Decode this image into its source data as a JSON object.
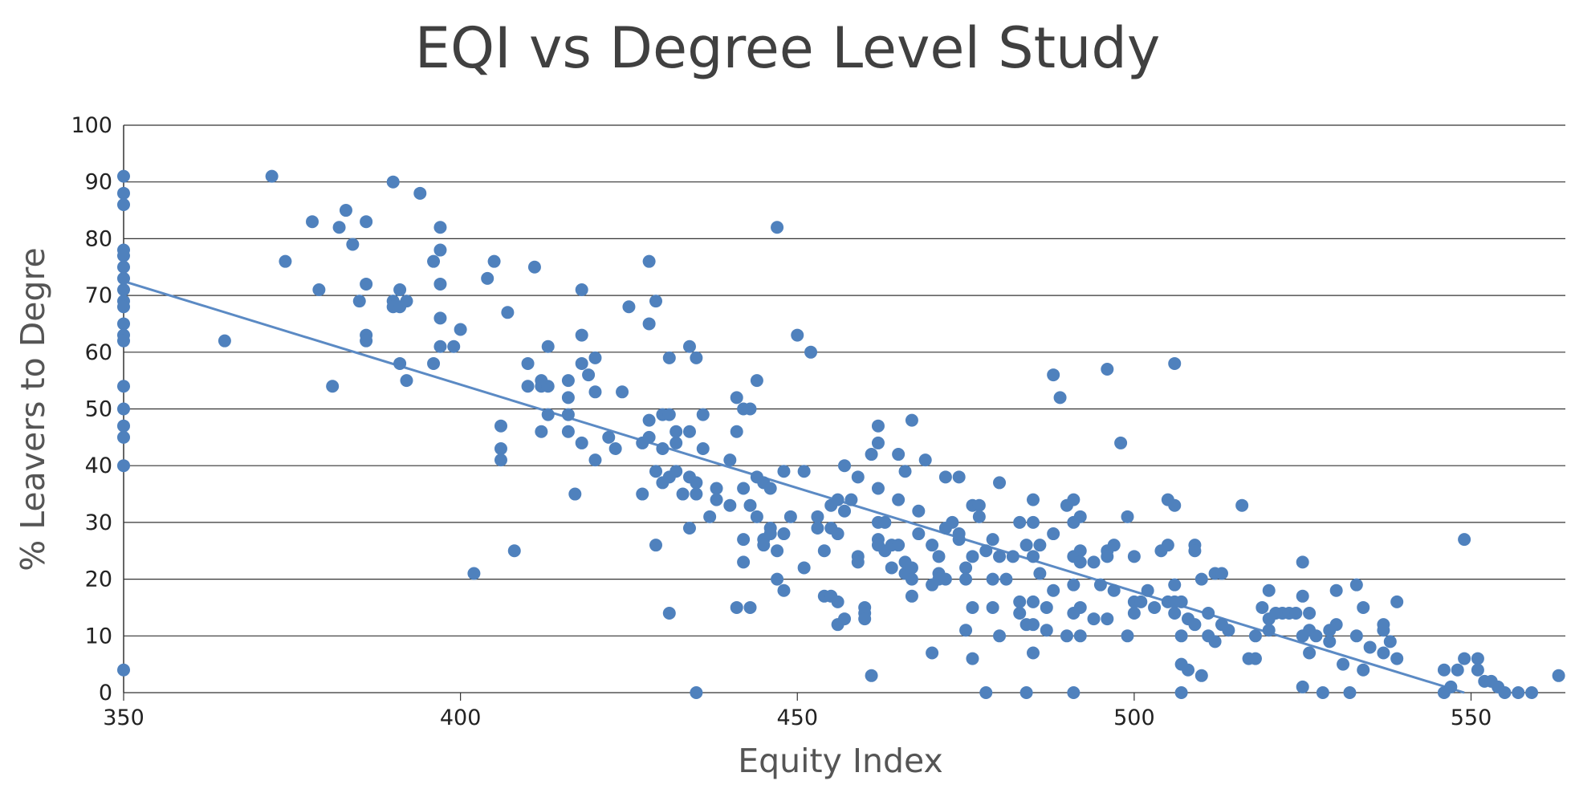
{
  "chart_data": {
    "type": "scatter",
    "title": "EQI vs Degree Level Study",
    "xlabel": "Equity Index",
    "ylabel": "% Leavers to Degre",
    "xlim": [
      350,
      564
    ],
    "ylim": [
      0,
      100
    ],
    "x_ticks": [
      "350",
      "400",
      "450",
      "500",
      "550"
    ],
    "y_ticks": [
      "0",
      "10",
      "20",
      "30",
      "40",
      "50",
      "60",
      "70",
      "80",
      "90",
      "100"
    ],
    "grid": "horizontal",
    "legend": "none",
    "colors": {
      "points": "#4f81bd",
      "trendline": "#5b8ac4",
      "grid": "#333333",
      "text": "#404040"
    },
    "trendline": {
      "x": [
        350,
        549
      ],
      "y": [
        72.5,
        0
      ]
    },
    "points": [
      [
        350,
        91
      ],
      [
        350,
        88
      ],
      [
        350,
        86
      ],
      [
        350,
        78
      ],
      [
        350,
        77
      ],
      [
        350,
        75
      ],
      [
        350,
        73
      ],
      [
        350,
        71
      ],
      [
        350,
        69
      ],
      [
        350,
        68
      ],
      [
        350,
        65
      ],
      [
        350,
        63
      ],
      [
        350,
        62
      ],
      [
        350,
        54
      ],
      [
        350,
        50
      ],
      [
        350,
        47
      ],
      [
        350,
        45
      ],
      [
        350,
        40
      ],
      [
        350,
        4
      ],
      [
        365,
        62
      ],
      [
        372,
        91
      ],
      [
        374,
        76
      ],
      [
        378,
        83
      ],
      [
        379,
        71
      ],
      [
        381,
        54
      ],
      [
        382,
        82
      ],
      [
        383,
        85
      ],
      [
        384,
        79
      ],
      [
        385,
        69
      ],
      [
        386,
        83
      ],
      [
        386,
        72
      ],
      [
        386,
        63
      ],
      [
        386,
        62
      ],
      [
        390,
        90
      ],
      [
        390,
        69
      ],
      [
        390,
        68
      ],
      [
        391,
        71
      ],
      [
        391,
        68
      ],
      [
        391,
        58
      ],
      [
        392,
        69
      ],
      [
        392,
        55
      ],
      [
        394,
        88
      ],
      [
        396,
        76
      ],
      [
        396,
        58
      ],
      [
        397,
        82
      ],
      [
        397,
        78
      ],
      [
        397,
        72
      ],
      [
        397,
        66
      ],
      [
        397,
        61
      ],
      [
        399,
        61
      ],
      [
        400,
        64
      ],
      [
        402,
        21
      ],
      [
        404,
        73
      ],
      [
        405,
        76
      ],
      [
        406,
        47
      ],
      [
        406,
        43
      ],
      [
        406,
        41
      ],
      [
        407,
        67
      ],
      [
        408,
        25
      ],
      [
        410,
        58
      ],
      [
        410,
        54
      ],
      [
        411,
        75
      ],
      [
        412,
        55
      ],
      [
        412,
        54
      ],
      [
        412,
        46
      ],
      [
        413,
        54
      ],
      [
        413,
        49
      ],
      [
        413,
        61
      ],
      [
        416,
        55
      ],
      [
        416,
        52
      ],
      [
        416,
        49
      ],
      [
        416,
        46
      ],
      [
        417,
        35
      ],
      [
        418,
        71
      ],
      [
        418,
        63
      ],
      [
        418,
        58
      ],
      [
        418,
        44
      ],
      [
        419,
        56
      ],
      [
        420,
        59
      ],
      [
        420,
        53
      ],
      [
        420,
        41
      ],
      [
        422,
        45
      ],
      [
        423,
        43
      ],
      [
        424,
        53
      ],
      [
        425,
        68
      ],
      [
        427,
        44
      ],
      [
        427,
        35
      ],
      [
        428,
        76
      ],
      [
        428,
        65
      ],
      [
        428,
        48
      ],
      [
        428,
        45
      ],
      [
        429,
        69
      ],
      [
        429,
        39
      ],
      [
        429,
        26
      ],
      [
        430,
        49
      ],
      [
        430,
        43
      ],
      [
        430,
        37
      ],
      [
        431,
        59
      ],
      [
        431,
        49
      ],
      [
        431,
        38
      ],
      [
        431,
        14
      ],
      [
        432,
        44
      ],
      [
        432,
        46
      ],
      [
        432,
        39
      ],
      [
        433,
        35
      ],
      [
        434,
        61
      ],
      [
        434,
        46
      ],
      [
        434,
        38
      ],
      [
        434,
        29
      ],
      [
        435,
        59
      ],
      [
        435,
        37
      ],
      [
        435,
        35
      ],
      [
        435,
        0
      ],
      [
        436,
        49
      ],
      [
        436,
        43
      ],
      [
        437,
        31
      ],
      [
        438,
        36
      ],
      [
        438,
        34
      ],
      [
        440,
        41
      ],
      [
        440,
        33
      ],
      [
        441,
        52
      ],
      [
        441,
        46
      ],
      [
        441,
        15
      ],
      [
        442,
        50
      ],
      [
        442,
        36
      ],
      [
        442,
        27
      ],
      [
        442,
        23
      ],
      [
        443,
        50
      ],
      [
        443,
        33
      ],
      [
        443,
        15
      ],
      [
        444,
        55
      ],
      [
        444,
        38
      ],
      [
        444,
        31
      ],
      [
        445,
        37
      ],
      [
        445,
        27
      ],
      [
        445,
        26
      ],
      [
        446,
        36
      ],
      [
        446,
        29
      ],
      [
        446,
        28
      ],
      [
        447,
        82
      ],
      [
        447,
        25
      ],
      [
        447,
        20
      ],
      [
        448,
        39
      ],
      [
        448,
        28
      ],
      [
        448,
        18
      ],
      [
        449,
        31
      ],
      [
        450,
        63
      ],
      [
        451,
        39
      ],
      [
        451,
        22
      ],
      [
        452,
        60
      ],
      [
        453,
        31
      ],
      [
        453,
        29
      ],
      [
        454,
        25
      ],
      [
        454,
        17
      ],
      [
        455,
        33
      ],
      [
        455,
        29
      ],
      [
        455,
        17
      ],
      [
        456,
        34
      ],
      [
        456,
        28
      ],
      [
        456,
        16
      ],
      [
        456,
        12
      ],
      [
        457,
        40
      ],
      [
        457,
        32
      ],
      [
        457,
        13
      ],
      [
        458,
        34
      ],
      [
        459,
        38
      ],
      [
        459,
        24
      ],
      [
        459,
        23
      ],
      [
        460,
        15
      ],
      [
        460,
        14
      ],
      [
        460,
        13
      ],
      [
        461,
        42
      ],
      [
        461,
        3
      ],
      [
        462,
        47
      ],
      [
        462,
        44
      ],
      [
        462,
        36
      ],
      [
        462,
        30
      ],
      [
        462,
        27
      ],
      [
        462,
        26
      ],
      [
        463,
        30
      ],
      [
        463,
        25
      ],
      [
        464,
        26
      ],
      [
        464,
        22
      ],
      [
        465,
        34
      ],
      [
        465,
        26
      ],
      [
        465,
        42
      ],
      [
        466,
        39
      ],
      [
        466,
        23
      ],
      [
        466,
        21
      ],
      [
        467,
        48
      ],
      [
        467,
        22
      ],
      [
        467,
        20
      ],
      [
        467,
        17
      ],
      [
        468,
        28
      ],
      [
        468,
        32
      ],
      [
        469,
        41
      ],
      [
        470,
        26
      ],
      [
        470,
        19
      ],
      [
        470,
        7
      ],
      [
        471,
        24
      ],
      [
        471,
        21
      ],
      [
        471,
        20
      ],
      [
        472,
        38
      ],
      [
        472,
        29
      ],
      [
        472,
        20
      ],
      [
        473,
        30
      ],
      [
        474,
        38
      ],
      [
        474,
        27
      ],
      [
        474,
        28
      ],
      [
        475,
        22
      ],
      [
        475,
        20
      ],
      [
        475,
        11
      ],
      [
        476,
        33
      ],
      [
        476,
        24
      ],
      [
        476,
        15
      ],
      [
        476,
        6
      ],
      [
        477,
        33
      ],
      [
        477,
        31
      ],
      [
        478,
        0
      ],
      [
        478,
        25
      ],
      [
        479,
        27
      ],
      [
        479,
        20
      ],
      [
        479,
        15
      ],
      [
        480,
        37
      ],
      [
        480,
        24
      ],
      [
        480,
        10
      ],
      [
        481,
        20
      ],
      [
        482,
        24
      ],
      [
        483,
        30
      ],
      [
        483,
        16
      ],
      [
        483,
        14
      ],
      [
        484,
        26
      ],
      [
        484,
        12
      ],
      [
        484,
        0
      ],
      [
        485,
        34
      ],
      [
        485,
        30
      ],
      [
        485,
        24
      ],
      [
        485,
        16
      ],
      [
        485,
        12
      ],
      [
        485,
        7
      ],
      [
        486,
        26
      ],
      [
        486,
        21
      ],
      [
        487,
        15
      ],
      [
        487,
        11
      ],
      [
        488,
        56
      ],
      [
        488,
        28
      ],
      [
        488,
        18
      ],
      [
        489,
        52
      ],
      [
        490,
        33
      ],
      [
        490,
        10
      ],
      [
        491,
        34
      ],
      [
        491,
        30
      ],
      [
        491,
        24
      ],
      [
        491,
        19
      ],
      [
        491,
        14
      ],
      [
        491,
        0
      ],
      [
        492,
        31
      ],
      [
        492,
        25
      ],
      [
        492,
        23
      ],
      [
        492,
        15
      ],
      [
        492,
        10
      ],
      [
        494,
        23
      ],
      [
        494,
        13
      ],
      [
        495,
        19
      ],
      [
        496,
        57
      ],
      [
        496,
        25
      ],
      [
        496,
        24
      ],
      [
        496,
        13
      ],
      [
        497,
        26
      ],
      [
        497,
        18
      ],
      [
        498,
        44
      ],
      [
        499,
        31
      ],
      [
        499,
        10
      ],
      [
        500,
        24
      ],
      [
        500,
        16
      ],
      [
        500,
        14
      ],
      [
        501,
        16
      ],
      [
        502,
        18
      ],
      [
        503,
        15
      ],
      [
        504,
        25
      ],
      [
        505,
        34
      ],
      [
        505,
        26
      ],
      [
        505,
        16
      ],
      [
        506,
        58
      ],
      [
        506,
        33
      ],
      [
        506,
        19
      ],
      [
        506,
        16
      ],
      [
        506,
        14
      ],
      [
        507,
        16
      ],
      [
        507,
        10
      ],
      [
        507,
        5
      ],
      [
        507,
        0
      ],
      [
        508,
        13
      ],
      [
        508,
        4
      ],
      [
        509,
        26
      ],
      [
        509,
        25
      ],
      [
        509,
        12
      ],
      [
        510,
        20
      ],
      [
        510,
        3
      ],
      [
        511,
        14
      ],
      [
        511,
        10
      ],
      [
        512,
        21
      ],
      [
        512,
        9
      ],
      [
        513,
        21
      ],
      [
        513,
        12
      ],
      [
        514,
        11
      ],
      [
        516,
        33
      ],
      [
        517,
        6
      ],
      [
        518,
        10
      ],
      [
        518,
        6
      ],
      [
        519,
        15
      ],
      [
        520,
        18
      ],
      [
        520,
        13
      ],
      [
        520,
        11
      ],
      [
        521,
        14
      ],
      [
        522,
        14
      ],
      [
        523,
        14
      ],
      [
        524,
        14
      ],
      [
        525,
        23
      ],
      [
        525,
        17
      ],
      [
        525,
        10
      ],
      [
        525,
        1
      ],
      [
        526,
        14
      ],
      [
        526,
        11
      ],
      [
        526,
        7
      ],
      [
        527,
        10
      ],
      [
        528,
        0
      ],
      [
        529,
        11
      ],
      [
        529,
        9
      ],
      [
        530,
        18
      ],
      [
        530,
        12
      ],
      [
        531,
        5
      ],
      [
        532,
        0
      ],
      [
        533,
        19
      ],
      [
        533,
        10
      ],
      [
        534,
        15
      ],
      [
        534,
        4
      ],
      [
        535,
        8
      ],
      [
        537,
        12
      ],
      [
        537,
        11
      ],
      [
        537,
        7
      ],
      [
        538,
        9
      ],
      [
        539,
        6
      ],
      [
        539,
        16
      ],
      [
        546,
        4
      ],
      [
        546,
        0
      ],
      [
        547,
        1
      ],
      [
        548,
        4
      ],
      [
        549,
        27
      ],
      [
        549,
        6
      ],
      [
        551,
        6
      ],
      [
        551,
        4
      ],
      [
        552,
        2
      ],
      [
        553,
        2
      ],
      [
        554,
        1
      ],
      [
        555,
        0
      ],
      [
        557,
        0
      ],
      [
        559,
        0
      ],
      [
        563,
        3
      ]
    ]
  }
}
